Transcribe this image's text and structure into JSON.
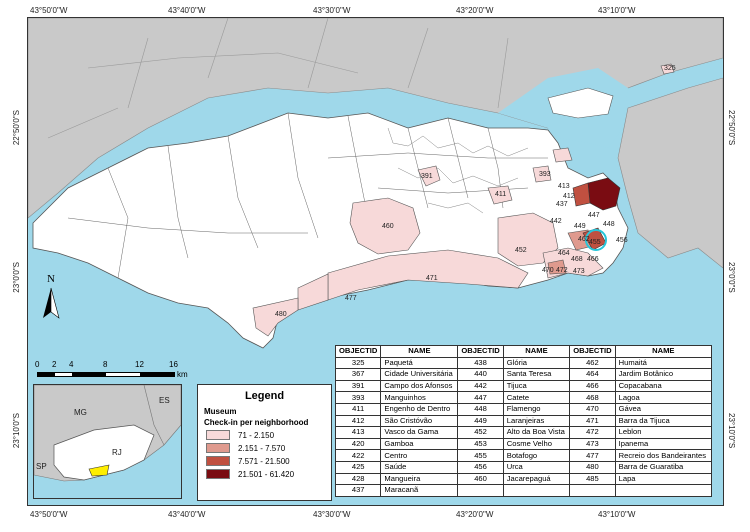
{
  "coords": {
    "top": [
      "43°50'0\"W",
      "43°40'0\"W",
      "43°30'0\"W",
      "43°20'0\"W",
      "43°10'0\"W"
    ],
    "bottom": [
      "43°50'0\"W",
      "43°40'0\"W",
      "43°30'0\"W",
      "43°20'0\"W",
      "43°10'0\"W"
    ],
    "left": [
      "22°50'0\"S",
      "23°0'0\"S",
      "23°10'0\"S"
    ],
    "right": [
      "22°50'0\"S",
      "23°0'0\"S",
      "23°10'0\"S"
    ]
  },
  "north_label": "N",
  "scale": {
    "ticks": [
      "0",
      "2",
      "4",
      "8",
      "12",
      "16"
    ],
    "unit": "km"
  },
  "legend": {
    "title": "Legend",
    "layer": "Museum",
    "subtitle": "Check-in per neighborhood",
    "classes": [
      {
        "label": "71 - 2.150",
        "color": "#f7d9d9"
      },
      {
        "label": "2.151 - 7.570",
        "color": "#df9a8e"
      },
      {
        "label": "7.571 - 21.500",
        "color": "#c05040"
      },
      {
        "label": "21.501 - 61.420",
        "color": "#7a0c12"
      }
    ]
  },
  "inset": {
    "labels": {
      "mg": "MG",
      "es": "ES",
      "rj": "RJ",
      "sp": "SP"
    }
  },
  "map_labels": [
    "325",
    "391",
    "393",
    "411",
    "460",
    "452",
    "471",
    "477",
    "480",
    "442",
    "456",
    "466",
    "468",
    "470",
    "472",
    "473",
    "464",
    "455",
    "447",
    "448",
    "449",
    "462",
    "413",
    "412",
    "437"
  ],
  "table": {
    "headers": [
      "OBJECTID",
      "NAME",
      "OBJECTID",
      "NAME",
      "OBJECTID",
      "NAME"
    ],
    "rows": [
      [
        "325",
        "Paquetá",
        "438",
        "Glória",
        "462",
        "Humaitá"
      ],
      [
        "367",
        "Cidade Universitária",
        "440",
        "Santa Teresa",
        "464",
        "Jardim Botânico"
      ],
      [
        "391",
        "Campo dos Afonsos",
        "442",
        "Tijuca",
        "466",
        "Copacabana"
      ],
      [
        "393",
        "Manguinhos",
        "447",
        "Catete",
        "468",
        "Lagoa"
      ],
      [
        "411",
        "Engenho de Dentro",
        "448",
        "Flamengo",
        "470",
        "Gávea"
      ],
      [
        "412",
        "São Cristóvão",
        "449",
        "Laranjeiras",
        "471",
        "Barra da Tijuca"
      ],
      [
        "413",
        "Vasco da Gama",
        "452",
        "Alto da Boa Vista",
        "472",
        "Leblon"
      ],
      [
        "420",
        "Gamboa",
        "453",
        "Cosme Velho",
        "473",
        "Ipanema"
      ],
      [
        "422",
        "Centro",
        "455",
        "Botafogo",
        "477",
        "Recreio dos Bandeirantes"
      ],
      [
        "425",
        "Saúde",
        "456",
        "Urca",
        "480",
        "Barra de Guaratiba"
      ],
      [
        "428",
        "Mangueira",
        "460",
        "Jacarepaguá",
        "485",
        "Lapa"
      ],
      [
        "437",
        "Maracanã",
        "",
        "",
        "",
        ""
      ]
    ]
  }
}
